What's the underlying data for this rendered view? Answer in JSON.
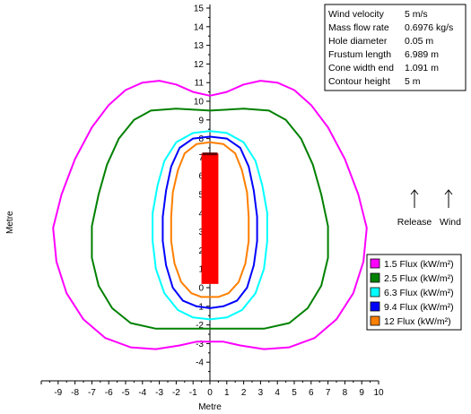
{
  "chart_data": {
    "type": "line",
    "xlabel": "Metre",
    "ylabel": "Metre",
    "xlim": [
      -10,
      10
    ],
    "ylim": [
      -5,
      15
    ],
    "xticks": [
      -9,
      -8,
      -7,
      -6,
      -5,
      -4,
      -3,
      -2,
      -1,
      0,
      1,
      2,
      3,
      4,
      5,
      6,
      7,
      8,
      9,
      10
    ],
    "yticks": [
      -4,
      -3,
      -2,
      -1,
      0,
      1,
      2,
      3,
      4,
      5,
      6,
      7,
      8,
      9,
      10,
      11,
      12,
      13,
      14,
      15
    ],
    "grid": false,
    "legend_position": "bottom-right",
    "info": [
      {
        "label": "Wind velocity",
        "value": "5 m/s"
      },
      {
        "label": "Mass flow rate",
        "value": "0.6976 kg/s"
      },
      {
        "label": "Hole diameter",
        "value": "0.05 m"
      },
      {
        "label": "Frustum length",
        "value": "6.989 m"
      },
      {
        "label": "Cone width end",
        "value": "1.091 m"
      },
      {
        "label": "Contour height",
        "value": "5 m"
      }
    ],
    "flame": {
      "x": [
        -0.5,
        0.5
      ],
      "y": [
        0.2,
        7.2
      ],
      "color": "#ff0000"
    },
    "arrows": [
      {
        "label": "Release",
        "x": 8.8,
        "y": 3.8
      },
      {
        "label": "Wind",
        "x": 10.9,
        "y": 3.8
      }
    ],
    "series": [
      {
        "name": "1.5 Flux (kW/m²)",
        "color": "#ff00ff",
        "points": [
          [
            0,
            10.3
          ],
          [
            1,
            10.5
          ],
          [
            2,
            10.9
          ],
          [
            3,
            11.1
          ],
          [
            4,
            11.0
          ],
          [
            5,
            10.6
          ],
          [
            6,
            9.8
          ],
          [
            7,
            8.6
          ],
          [
            8,
            6.9
          ],
          [
            8.8,
            5.0
          ],
          [
            9.3,
            3.2
          ],
          [
            9.1,
            1.4
          ],
          [
            8.5,
            -0.3
          ],
          [
            7.5,
            -1.7
          ],
          [
            6.2,
            -2.7
          ],
          [
            4.7,
            -3.2
          ],
          [
            3.2,
            -3.3
          ],
          [
            1.8,
            -3.1
          ],
          [
            0.8,
            -2.9
          ],
          [
            0,
            -2.9
          ],
          [
            -0.8,
            -2.9
          ],
          [
            -1.8,
            -3.1
          ],
          [
            -3.2,
            -3.3
          ],
          [
            -4.7,
            -3.2
          ],
          [
            -6.2,
            -2.7
          ],
          [
            -7.5,
            -1.7
          ],
          [
            -8.5,
            -0.3
          ],
          [
            -9.1,
            1.4
          ],
          [
            -9.3,
            3.2
          ],
          [
            -8.8,
            5.0
          ],
          [
            -8,
            6.9
          ],
          [
            -7,
            8.6
          ],
          [
            -6,
            9.8
          ],
          [
            -5,
            10.6
          ],
          [
            -4,
            11.0
          ],
          [
            -3,
            11.1
          ],
          [
            -2,
            10.9
          ],
          [
            -1,
            10.5
          ],
          [
            0,
            10.3
          ]
        ]
      },
      {
        "name": "2.5 Flux (kW/m²)",
        "color": "#008000",
        "points": [
          [
            0,
            9.5
          ],
          [
            2,
            9.6
          ],
          [
            3.5,
            9.5
          ],
          [
            4.5,
            9.0
          ],
          [
            5.4,
            8.0
          ],
          [
            6.1,
            6.6
          ],
          [
            6.6,
            5.0
          ],
          [
            7.0,
            3.3
          ],
          [
            7.0,
            1.6
          ],
          [
            6.6,
            0.1
          ],
          [
            5.8,
            -1.1
          ],
          [
            4.7,
            -1.9
          ],
          [
            3.2,
            -2.2
          ],
          [
            1.6,
            -2.2
          ],
          [
            0,
            -2.2
          ],
          [
            -1.6,
            -2.2
          ],
          [
            -3.2,
            -2.2
          ],
          [
            -4.7,
            -1.9
          ],
          [
            -5.8,
            -1.1
          ],
          [
            -6.6,
            0.1
          ],
          [
            -7.0,
            1.6
          ],
          [
            -7.0,
            3.3
          ],
          [
            -6.6,
            5.0
          ],
          [
            -6.1,
            6.6
          ],
          [
            -5.4,
            8.0
          ],
          [
            -4.5,
            9.0
          ],
          [
            -3.5,
            9.5
          ],
          [
            -2,
            9.6
          ],
          [
            0,
            9.5
          ]
        ]
      },
      {
        "name": "6.3 Flux (kW/m²)",
        "color": "#00ffff",
        "points": [
          [
            0,
            8.4
          ],
          [
            1,
            8.3
          ],
          [
            2,
            7.8
          ],
          [
            2.7,
            6.8
          ],
          [
            3.1,
            5.5
          ],
          [
            3.4,
            4.0
          ],
          [
            3.4,
            2.5
          ],
          [
            3.2,
            1.0
          ],
          [
            2.7,
            -0.3
          ],
          [
            1.9,
            -1.2
          ],
          [
            1.0,
            -1.6
          ],
          [
            0,
            -1.7
          ],
          [
            -1.0,
            -1.6
          ],
          [
            -1.9,
            -1.2
          ],
          [
            -2.7,
            -0.3
          ],
          [
            -3.2,
            1.0
          ],
          [
            -3.4,
            2.5
          ],
          [
            -3.4,
            4.0
          ],
          [
            -3.1,
            5.5
          ],
          [
            -2.7,
            6.8
          ],
          [
            -2,
            7.8
          ],
          [
            -1,
            8.3
          ],
          [
            0,
            8.4
          ]
        ]
      },
      {
        "name": "9.4 Flux (kW/m²)",
        "color": "#0000ff",
        "points": [
          [
            0,
            8.1
          ],
          [
            1,
            8.0
          ],
          [
            1.8,
            7.5
          ],
          [
            2.3,
            6.5
          ],
          [
            2.6,
            5.2
          ],
          [
            2.8,
            3.8
          ],
          [
            2.8,
            2.5
          ],
          [
            2.6,
            1.2
          ],
          [
            2.2,
            0.0
          ],
          [
            1.6,
            -0.7
          ],
          [
            0.8,
            -1.0
          ],
          [
            0,
            -1.1
          ],
          [
            -0.8,
            -1.0
          ],
          [
            -1.6,
            -0.7
          ],
          [
            -2.2,
            0.0
          ],
          [
            -2.6,
            1.2
          ],
          [
            -2.8,
            2.5
          ],
          [
            -2.8,
            3.8
          ],
          [
            -2.6,
            5.2
          ],
          [
            -2.3,
            6.5
          ],
          [
            -1.8,
            7.5
          ],
          [
            -1,
            8.0
          ],
          [
            0,
            8.1
          ]
        ]
      },
      {
        "name": "12 Flux (kW/m²)",
        "color": "#ff7f00",
        "points": [
          [
            0,
            7.8
          ],
          [
            0.8,
            7.7
          ],
          [
            1.5,
            7.2
          ],
          [
            1.9,
            6.3
          ],
          [
            2.2,
            5.1
          ],
          [
            2.3,
            3.8
          ],
          [
            2.3,
            2.5
          ],
          [
            2.1,
            1.3
          ],
          [
            1.7,
            0.3
          ],
          [
            1.1,
            -0.3
          ],
          [
            0.5,
            -0.5
          ],
          [
            0,
            -0.5
          ],
          [
            -0.5,
            -0.5
          ],
          [
            -1.1,
            -0.3
          ],
          [
            -1.7,
            0.3
          ],
          [
            -2.1,
            1.3
          ],
          [
            -2.3,
            2.5
          ],
          [
            -2.3,
            3.8
          ],
          [
            -2.2,
            5.1
          ],
          [
            -1.9,
            6.3
          ],
          [
            -1.5,
            7.2
          ],
          [
            -0.8,
            7.7
          ],
          [
            0,
            7.8
          ]
        ]
      }
    ]
  }
}
